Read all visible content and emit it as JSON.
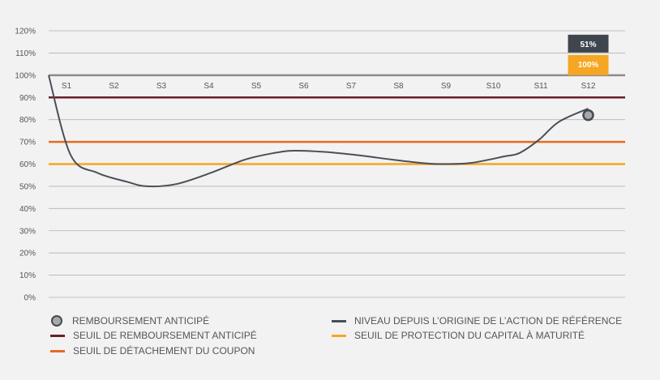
{
  "chart_data": {
    "type": "line",
    "y_ticks": [
      "120%",
      "110%",
      "100%",
      "90%",
      "80%",
      "70%",
      "60%",
      "50%",
      "40%",
      "30%",
      "20%",
      "10%",
      "0%"
    ],
    "ylim": [
      0,
      120
    ],
    "grid": true,
    "categories": [
      "S1",
      "S2",
      "S3",
      "S4",
      "S5",
      "S6",
      "S7",
      "S8",
      "S9",
      "S10",
      "S11",
      "S12"
    ],
    "series": [
      {
        "name": "NIVEAU DEPUIS L'ORIGINE DE L'ACTION DE RÉFÉRENCE",
        "color": "#4a4f58",
        "x": [
          0,
          0.45,
          1,
          1.6,
          2,
          2.6,
          3.3,
          4,
          4.6,
          5,
          5.6,
          6.3,
          7,
          7.6,
          8,
          8.6,
          9.3,
          9.6,
          10,
          10.4,
          11
        ],
        "y": [
          100,
          64,
          56,
          52,
          50,
          51,
          56,
          62,
          65,
          66,
          65.5,
          64,
          62,
          60.5,
          60,
          60.5,
          63.5,
          65,
          71,
          79,
          85
        ]
      }
    ],
    "thresholds": [
      {
        "name": "SEUIL DE REMBOURSEMENT ANTICIPÉ",
        "value": 90,
        "color": "#6b1f2a"
      },
      {
        "name": "SEUIL DE DÉTACHEMENT DU COUPON",
        "value": 70,
        "color": "#e56b1f"
      },
      {
        "name": "SEUIL DE PROTECTION DU CAPITAL À MATURITÉ",
        "value": 60,
        "color": "#f5a623"
      }
    ],
    "reference_line": {
      "value": 100,
      "color": "#8c8c8c"
    },
    "markers": [
      {
        "name": "REMBOURSEMENT ANTICIPÉ",
        "x": "S12",
        "y": 82
      }
    ],
    "annotation_box": {
      "category": "S12",
      "cells": [
        {
          "label": "51%",
          "color": "#3f454d"
        },
        {
          "label": "100%",
          "color": "#f5a623"
        }
      ]
    },
    "legend_position": "bottom"
  },
  "legend": {
    "marker_label": "REMBOURSEMENT ANTICIPÉ",
    "level_label": "NIVEAU DEPUIS L’ORIGINE DE L’ACTION DE RÉFÉRENCE",
    "early_threshold_label": "SEUIL DE REMBOURSEMENT ANTICIPÉ",
    "protection_label": "SEUIL DE PROTECTION DU CAPITAL À MATURITÉ",
    "coupon_label": "SEUIL DE DÉTACHEMENT DU COUPON"
  }
}
